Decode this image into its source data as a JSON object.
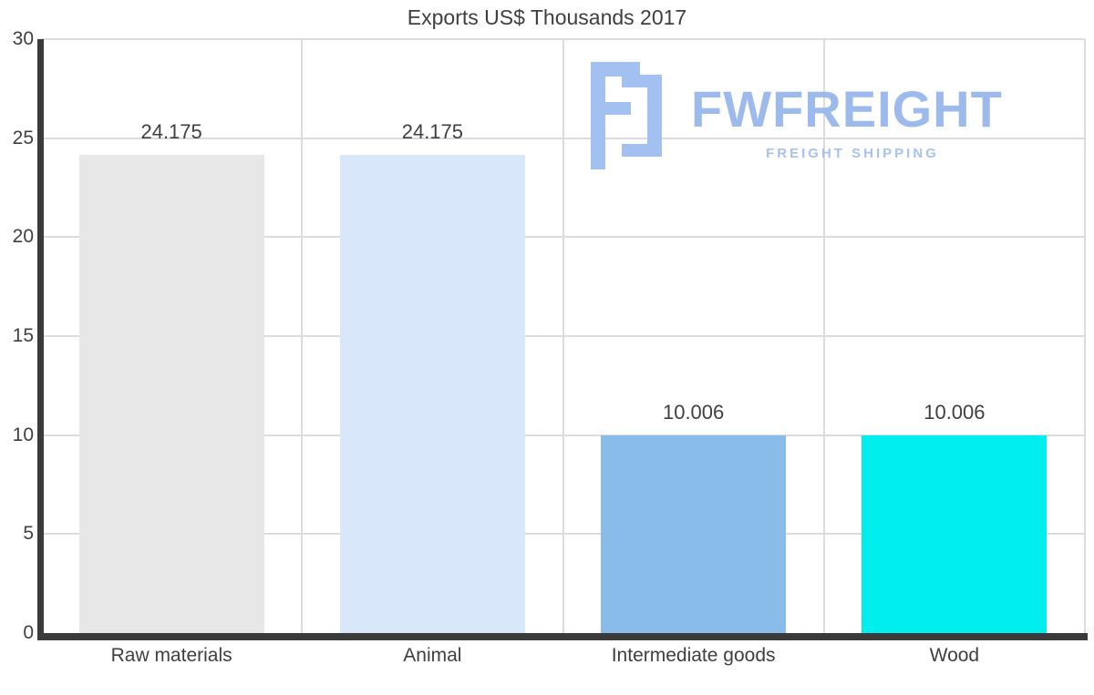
{
  "watermark": {
    "brand": "FWFREIGHT",
    "tagline": "FREIGHT SHIPPING",
    "icon_color": "#a2c0f0",
    "brand_color": "#9cbaec",
    "tagline_color": "#a8c2f0"
  },
  "chart_data": {
    "type": "bar",
    "title": "Exports US$ Thousands 2017",
    "categories": [
      "Raw materials",
      "Animal",
      "Intermediate goods",
      "Wood"
    ],
    "values": [
      24.175,
      24.175,
      10.006,
      10.006
    ],
    "value_labels": [
      "24.175",
      "24.175",
      "10.006",
      "10.006"
    ],
    "bar_colors": [
      "#e7e7e7",
      "#d9e7fa",
      "#89bce8",
      "#00eeee"
    ],
    "xlabel": "",
    "ylabel": "",
    "ylim": [
      0,
      30
    ],
    "yticks": [
      0,
      5,
      10,
      15,
      20,
      25,
      30
    ],
    "grid": true,
    "gridline_color": "#dcdcdc",
    "axis_color": "#3b3b3b",
    "legend": "none"
  }
}
